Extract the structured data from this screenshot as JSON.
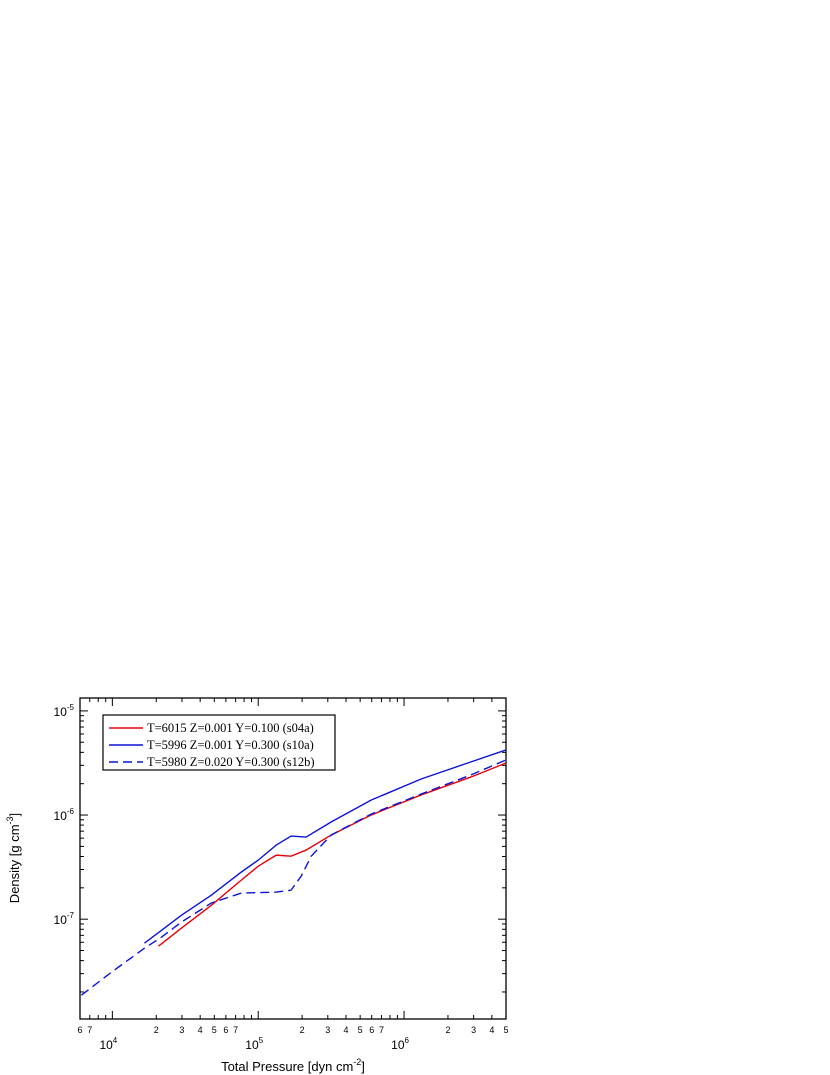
{
  "chart_data": {
    "type": "line",
    "xlabel": {
      "text": "Total Pressure [dyn cm",
      "exponent": "-2",
      "suffix": "]"
    },
    "ylabel": {
      "text": "Density  [g cm",
      "exponent": "-3",
      "suffix": "]"
    },
    "xscale": "log",
    "yscale": "log",
    "xlim": [
      6000,
      5000000
    ],
    "ylim": [
      1.1e-08,
      1.33e-05
    ],
    "xticks": [
      {
        "value": 6000,
        "label": "6"
      },
      {
        "value": 7000,
        "label": "7"
      },
      {
        "value": 10000,
        "label": "10",
        "exponent": "4"
      },
      {
        "value": 20000,
        "label": "2"
      },
      {
        "value": 30000,
        "label": "3"
      },
      {
        "value": 40000,
        "label": "4"
      },
      {
        "value": 50000,
        "label": "5"
      },
      {
        "value": 60000,
        "label": "6"
      },
      {
        "value": 70000,
        "label": "7"
      },
      {
        "value": 100000,
        "label": "10",
        "exponent": "5"
      },
      {
        "value": 200000,
        "label": "2"
      },
      {
        "value": 300000,
        "label": "3"
      },
      {
        "value": 400000,
        "label": "4"
      },
      {
        "value": 500000,
        "label": "5"
      },
      {
        "value": 600000,
        "label": "6"
      },
      {
        "value": 700000,
        "label": "7"
      },
      {
        "value": 1000000,
        "label": "10",
        "exponent": "6"
      },
      {
        "value": 2000000,
        "label": "2"
      },
      {
        "value": 3000000,
        "label": "3"
      },
      {
        "value": 4000000,
        "label": "4"
      },
      {
        "value": 5000000,
        "label": "5"
      }
    ],
    "xminorticks": [
      8000,
      9000,
      80000,
      90000,
      800000,
      900000
    ],
    "yticks": [
      {
        "value": 1e-07,
        "label": "10",
        "exponent": "-7"
      },
      {
        "value": 1e-06,
        "label": "10",
        "exponent": "-6"
      },
      {
        "value": 1e-05,
        "label": "10",
        "exponent": "-5"
      }
    ],
    "yminorticks": [
      2e-08,
      3e-08,
      4e-08,
      5e-08,
      6e-08,
      7e-08,
      8e-08,
      9e-08,
      2e-07,
      3e-07,
      4e-07,
      5e-07,
      6e-07,
      7e-07,
      8e-07,
      9e-07,
      2e-06,
      3e-06,
      4e-06,
      5e-06,
      6e-06,
      7e-06,
      8e-06,
      9e-06
    ],
    "legend": "upper left",
    "series": [
      {
        "name": "T=6015 Z=0.001 Y=0.100 (s04a)",
        "color": "#e8000b",
        "dash": false,
        "x": [
          20700,
          29700,
          47700,
          76500,
          100000,
          133000,
          168000,
          213000,
          316000,
          594000,
          1310000,
          2880000,
          5000000
        ],
        "values": [
          5.5e-08,
          8.19e-08,
          1.36e-07,
          2.37e-07,
          3.23e-07,
          4.12e-07,
          4.03e-07,
          4.61e-07,
          6.42e-07,
          1e-06,
          1.56e-06,
          2.32e-06,
          3.16e-06
        ]
      },
      {
        "name": "T=5996 Z=0.001 Y=0.300 (s10a)",
        "color": "#0a14d6",
        "dash": false,
        "x": [
          16600,
          29700,
          47700,
          76500,
          100000,
          133000,
          168000,
          213000,
          316000,
          594000,
          1310000,
          2880000,
          5000000
        ],
        "values": [
          5.88e-08,
          1.09e-07,
          1.7e-07,
          2.83e-07,
          3.69e-07,
          5.15e-07,
          6.28e-07,
          6.14e-07,
          8.57e-07,
          1.39e-06,
          2.22e-06,
          3.24e-06,
          4.22e-06
        ]
      },
      {
        "name": "T=5980 Z=0.020 Y=0.300 (s12b)",
        "color": "#0a14d6",
        "dash": true,
        "x": [
          6130,
          9840,
          16600,
          21700,
          29700,
          47700,
          76500,
          100000,
          133000,
          168000,
          197000,
          231000,
          316000,
          594000,
          1310000,
          2880000,
          5000000
        ],
        "values": [
          1.86e-08,
          3.09e-08,
          5.26e-08,
          6.71e-08,
          9.36e-08,
          1.43e-07,
          1.78e-07,
          1.8e-07,
          1.82e-07,
          1.9e-07,
          2.59e-07,
          4.03e-07,
          6.42e-07,
          1.02e-06,
          1.59e-06,
          2.43e-06,
          3.38e-06
        ]
      }
    ]
  }
}
